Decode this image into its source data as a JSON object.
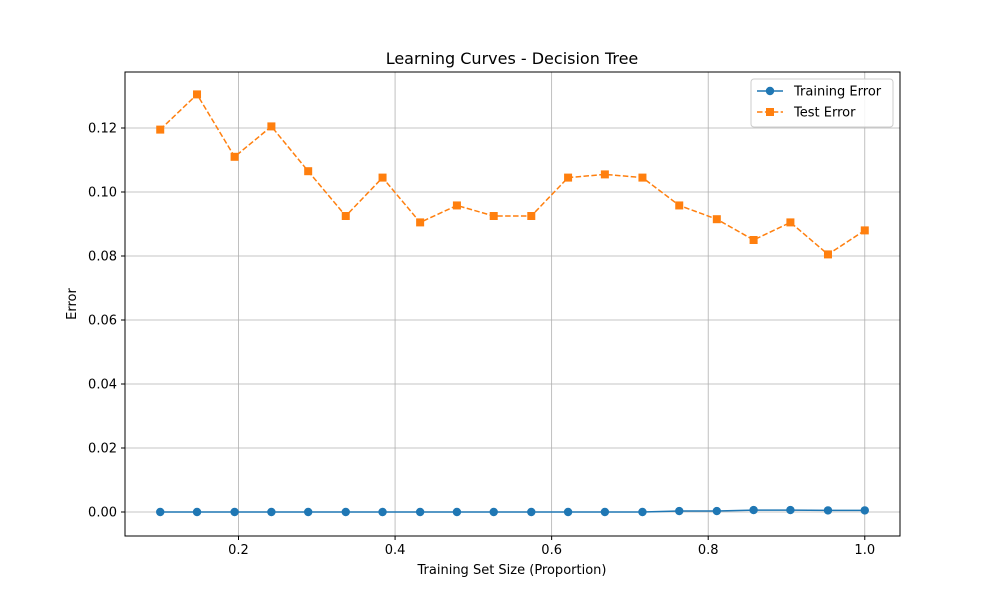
{
  "chart_data": {
    "type": "line",
    "title": "Learning Curves - Decision Tree",
    "xlabel": "Training Set Size (Proportion)",
    "ylabel": "Error",
    "xlim": [
      0.055,
      1.045
    ],
    "ylim": [
      -0.0075,
      0.1375
    ],
    "xticks": [
      0.2,
      0.4,
      0.6,
      0.8,
      1.0
    ],
    "xtick_labels": [
      "0.2",
      "0.4",
      "0.6",
      "0.8",
      "1.0"
    ],
    "yticks": [
      0.0,
      0.02,
      0.04,
      0.06,
      0.08,
      0.1,
      0.12
    ],
    "ytick_labels": [
      "0.00",
      "0.02",
      "0.04",
      "0.06",
      "0.08",
      "0.10",
      "0.12"
    ],
    "grid": true,
    "legend_position": "top-right",
    "x": [
      0.1,
      0.147,
      0.195,
      0.242,
      0.289,
      0.337,
      0.384,
      0.432,
      0.479,
      0.526,
      0.574,
      0.621,
      0.668,
      0.716,
      0.763,
      0.811,
      0.858,
      0.905,
      0.953,
      1.0
    ],
    "series": [
      {
        "name": "Training Error",
        "color": "#1f77b4",
        "marker": "circle",
        "linestyle": "solid",
        "values": [
          0.0,
          0.0,
          0.0,
          0.0,
          0.0,
          0.0,
          0.0,
          0.0,
          0.0,
          0.0,
          0.0,
          0.0,
          0.0,
          0.0,
          0.0003,
          0.0003,
          0.0006,
          0.0006,
          0.0005,
          0.0005
        ]
      },
      {
        "name": "Test Error",
        "color": "#ff7f0e",
        "marker": "square",
        "linestyle": "dashed",
        "values": [
          0.1195,
          0.1305,
          0.111,
          0.1205,
          0.1065,
          0.0925,
          0.1045,
          0.0905,
          0.0958,
          0.0925,
          0.0925,
          0.1045,
          0.1055,
          0.1045,
          0.0958,
          0.0915,
          0.085,
          0.0905,
          0.0805,
          0.088
        ]
      }
    ]
  }
}
